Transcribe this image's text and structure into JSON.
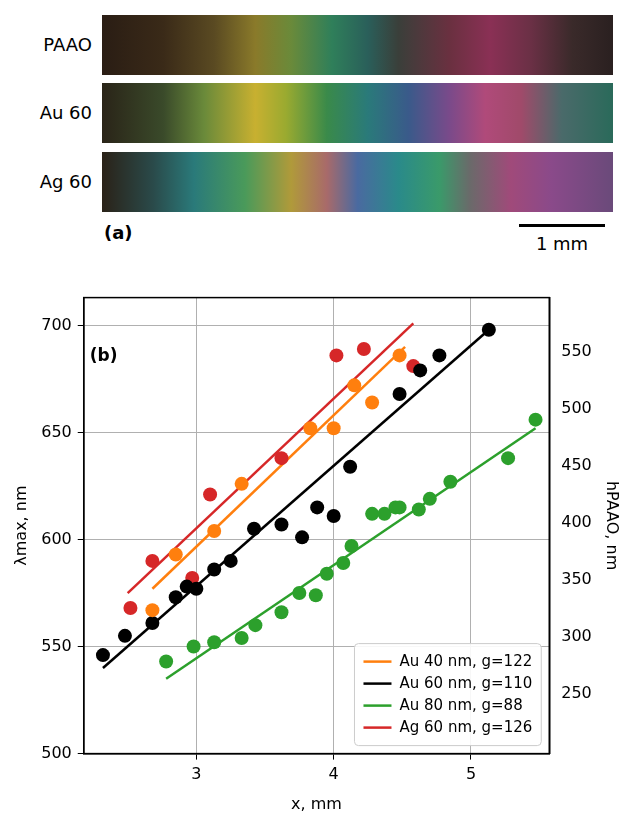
{
  "panel_a": {
    "label": "(a)",
    "strips": [
      "PAAO",
      "Au 60",
      "Ag 60"
    ],
    "scale_bar": "1 mm"
  },
  "chart_data": {
    "type": "scatter",
    "panel_label": "(b)",
    "x_label": "x, mm",
    "y_label": "λmax, nm",
    "y2_label": "hPAAO, nm",
    "xlim": [
      2.18,
      5.57
    ],
    "xticks": [
      3,
      4,
      5
    ],
    "ylim": [
      500,
      713
    ],
    "yticks": [
      500,
      550,
      600,
      650,
      700
    ],
    "y2lim": [
      198,
      598
    ],
    "y2ticks": [
      250,
      300,
      350,
      400,
      450,
      500,
      550
    ],
    "grid": true,
    "legend": "lower right",
    "series": [
      {
        "name": "Au 40 nm, g=122",
        "color": "#ff7f0e",
        "marker": "circle",
        "line_style": "solid",
        "x": [
          2.68,
          2.85,
          3.13,
          3.33,
          3.83,
          4.0,
          4.15,
          4.28,
          4.48
        ],
        "values": [
          567,
          593,
          604,
          626,
          652,
          652,
          672,
          664,
          686
        ],
        "fit": {
          "x": [
            2.68,
            4.52
          ],
          "values": [
            577,
            690
          ]
        }
      },
      {
        "name": "Au 60 nm, g=110",
        "color": "#000000",
        "marker": "circle",
        "line_style": "solid",
        "x": [
          2.32,
          2.48,
          2.68,
          2.85,
          2.93,
          3.0,
          3.13,
          3.25,
          3.42,
          3.62,
          3.77,
          3.88,
          4.0,
          4.12,
          4.48,
          4.63,
          4.77,
          5.13
        ],
        "values": [
          546,
          555,
          561,
          573,
          578,
          577,
          586,
          590,
          605,
          607,
          601,
          615,
          611,
          634,
          668,
          679,
          686,
          698
        ],
        "fit": {
          "x": [
            2.32,
            5.13
          ],
          "values": [
            540,
            698
          ]
        }
      },
      {
        "name": "Au 80 nm, g=88",
        "color": "#2ca02c",
        "marker": "circle",
        "line_style": "solid",
        "x": [
          2.78,
          2.98,
          3.13,
          3.33,
          3.43,
          3.62,
          3.75,
          3.87,
          3.95,
          4.07,
          4.13,
          4.28,
          4.37,
          4.45,
          4.48,
          4.62,
          4.7,
          4.85,
          5.27,
          5.47
        ],
        "values": [
          543,
          550,
          552,
          554,
          560,
          566,
          575,
          574,
          584,
          589,
          597,
          612,
          612,
          615,
          615,
          614,
          619,
          627,
          638,
          656
        ],
        "fit": {
          "x": [
            2.78,
            5.47
          ],
          "values": [
            535,
            652
          ]
        }
      },
      {
        "name": "Ag 60 nm, g=126",
        "color": "#d62728",
        "marker": "circle",
        "line_style": "solid",
        "x": [
          2.52,
          2.68,
          2.97,
          3.1,
          3.62,
          4.02,
          4.22,
          4.58
        ],
        "values": [
          568,
          590,
          582,
          621,
          638,
          686,
          689,
          681
        ],
        "fit": {
          "x": [
            2.5,
            4.58
          ],
          "values": [
            575,
            701
          ]
        }
      }
    ]
  }
}
